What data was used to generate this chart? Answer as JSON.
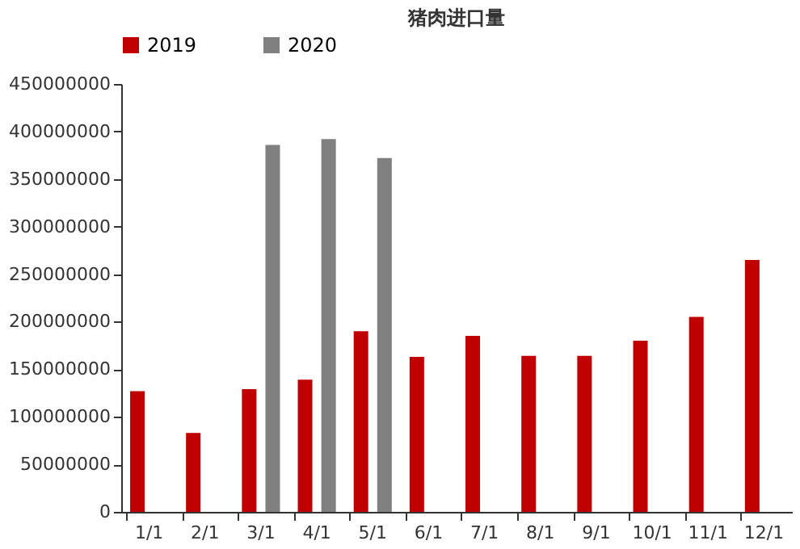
{
  "chart_data": {
    "type": "bar",
    "title": "猪肉进口量",
    "categories": [
      "1/1",
      "2/1",
      "3/1",
      "4/1",
      "5/1",
      "6/1",
      "7/1",
      "8/1",
      "9/1",
      "10/1",
      "11/1",
      "12/1"
    ],
    "series": [
      {
        "name": "2019",
        "color": "#c00000",
        "values": [
          127000000,
          83000000,
          129000000,
          139000000,
          190000000,
          163000000,
          185000000,
          164000000,
          164000000,
          180000000,
          205000000,
          265000000
        ]
      },
      {
        "name": "2020",
        "color": "#808080",
        "values": [
          null,
          null,
          386000000,
          392000000,
          372000000,
          null,
          null,
          null,
          null,
          null,
          null,
          null
        ]
      }
    ],
    "ylim": [
      0,
      450000000
    ],
    "yticks": [
      0,
      50000000,
      100000000,
      150000000,
      200000000,
      250000000,
      300000000,
      350000000,
      400000000,
      450000000
    ],
    "grid": false,
    "legend": "top"
  }
}
